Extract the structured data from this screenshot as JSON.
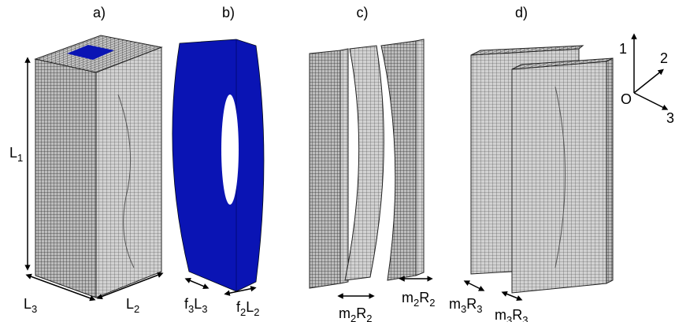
{
  "panel_labels": [
    "a)",
    "b)",
    "c)",
    "d)"
  ],
  "dimension_labels": [
    {
      "parts": [
        {
          "text": "L",
          "sub": "1"
        }
      ]
    },
    {
      "parts": [
        {
          "text": "L",
          "sub": "3"
        }
      ]
    },
    {
      "parts": [
        {
          "text": "L",
          "sub": "2"
        }
      ]
    },
    {
      "parts": [
        {
          "text": "f",
          "sub": "3"
        },
        {
          "text": "L",
          "sub": "3"
        }
      ]
    },
    {
      "parts": [
        {
          "text": "f",
          "sub": "2"
        },
        {
          "text": "L",
          "sub": "2"
        }
      ]
    },
    {
      "parts": [
        {
          "text": "m",
          "sub": "2"
        },
        {
          "text": "R",
          "sub": "2"
        }
      ]
    },
    {
      "parts": [
        {
          "text": "m",
          "sub": "2"
        },
        {
          "text": "R",
          "sub": "2"
        }
      ]
    },
    {
      "parts": [
        {
          "text": "m",
          "sub": "3"
        },
        {
          "text": "R",
          "sub": "3"
        }
      ]
    },
    {
      "parts": [
        {
          "text": "m",
          "sub": "3"
        },
        {
          "text": "R",
          "sub": "3"
        }
      ]
    }
  ],
  "axes": {
    "origin": "O",
    "axis_1": "1",
    "axis_2": "2",
    "axis_3": "3"
  }
}
